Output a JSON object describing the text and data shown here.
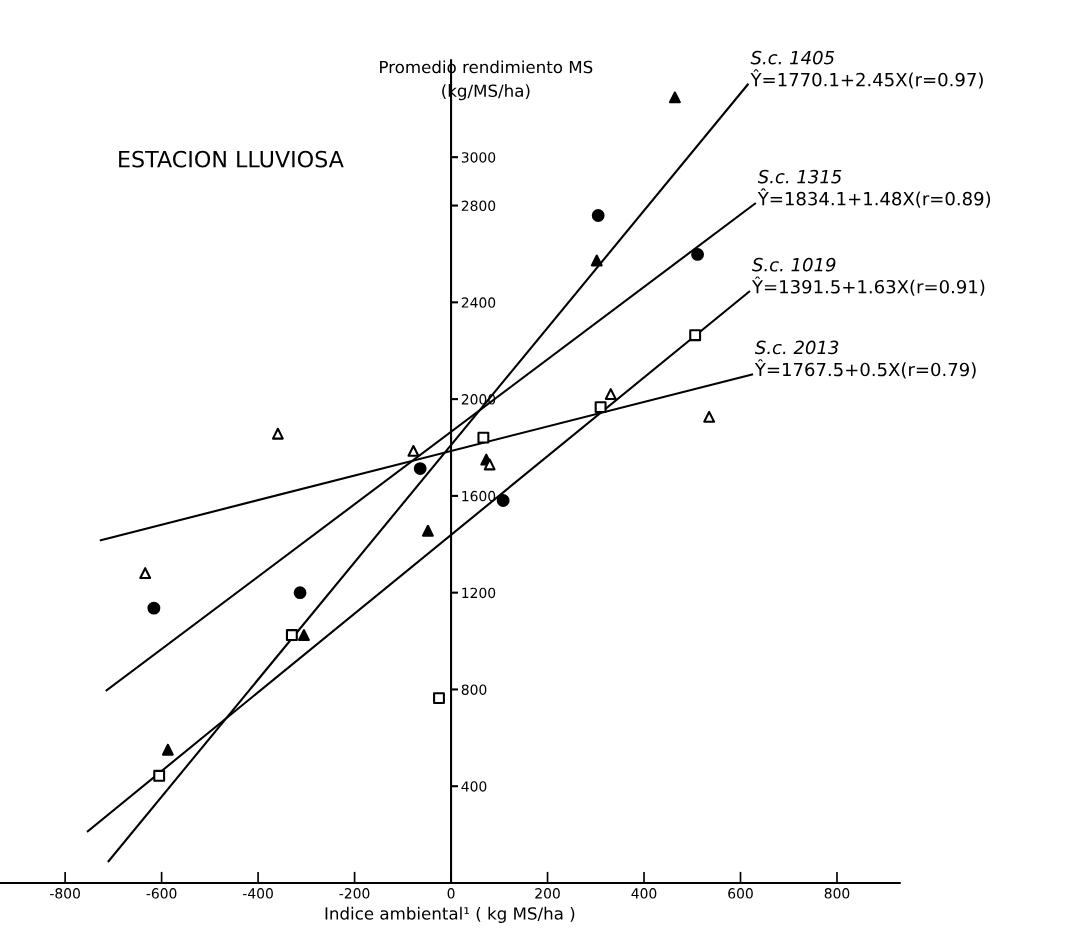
{
  "chart_data": {
    "type": "scatter",
    "title": "ESTACION LLUVIOSA",
    "xlabel": "Indice ambiental¹ ( kg MS/ha )",
    "ylabel": "Promedio rendimiento MS\n(kg/MS/ha)",
    "xlim": [
      -935,
      930
    ],
    "ylim": [
      0,
      3400
    ],
    "xticks": [
      -800,
      -600,
      -400,
      -200,
      0,
      200,
      400,
      600,
      800
    ],
    "yticks": [
      400,
      800,
      1200,
      1600,
      2000,
      2400,
      2800,
      3000
    ],
    "grid": false,
    "legend": false,
    "series": [
      {
        "marker": "triangle",
        "color": "#000000",
        "x": [
          -587,
          -305,
          -48,
          73,
          302,
          464
        ],
        "values": [
          551,
          1025,
          1456,
          1750,
          2573,
          3247
        ]
      },
      {
        "marker": "circle",
        "color": "#000000",
        "x": [
          -616,
          -313,
          -64,
          108,
          305,
          511
        ],
        "values": [
          1136,
          1200,
          1713,
          1581,
          2759,
          2598
        ]
      },
      {
        "marker": "square",
        "color": "#ffffff",
        "x": [
          -605,
          -330,
          -25,
          67,
          310,
          506
        ],
        "values": [
          443,
          1025,
          764,
          1841,
          1967,
          2264
        ]
      },
      {
        "marker": "triangle",
        "color": "#ffffff",
        "x": [
          -634,
          -359,
          -78,
          80,
          331,
          535
        ],
        "values": [
          1281,
          1857,
          1786,
          1730,
          2021,
          1927
        ]
      },
      {
        "type": "line",
        "name": "S.c. 1405",
        "color": "#000000",
        "x": [
          -710,
          615
        ],
        "values": [
          90,
          3300
        ]
      },
      {
        "type": "line",
        "name": "S.c. 1315",
        "color": "#000000",
        "x": [
          -714,
          630
        ],
        "values": [
          796,
          2808
        ]
      },
      {
        "type": "line",
        "name": "S.c. 1019",
        "color": "#000000",
        "x": [
          -753,
          618
        ],
        "values": [
          214,
          2444
        ]
      },
      {
        "type": "line",
        "name": "S.c. 2013",
        "color": "#000000",
        "x": [
          -726,
          624
        ],
        "values": [
          1417,
          2102
        ]
      }
    ],
    "annotations": [
      {
        "text": "Ŷ=1770.1+2.45X(r=0.97)",
        "x": 615,
        "y": 3300
      },
      {
        "text": "Ŷ=1834.1+1.48X(r=0.89)",
        "x": 630,
        "y": 2808
      },
      {
        "text": "Ŷ=1391.5+1.63X(r=0.91)",
        "x": 618,
        "y": 2444
      },
      {
        "text": "Ŷ=1767.5+0.5X(r=0.79)",
        "x": 624,
        "y": 2102
      }
    ]
  }
}
